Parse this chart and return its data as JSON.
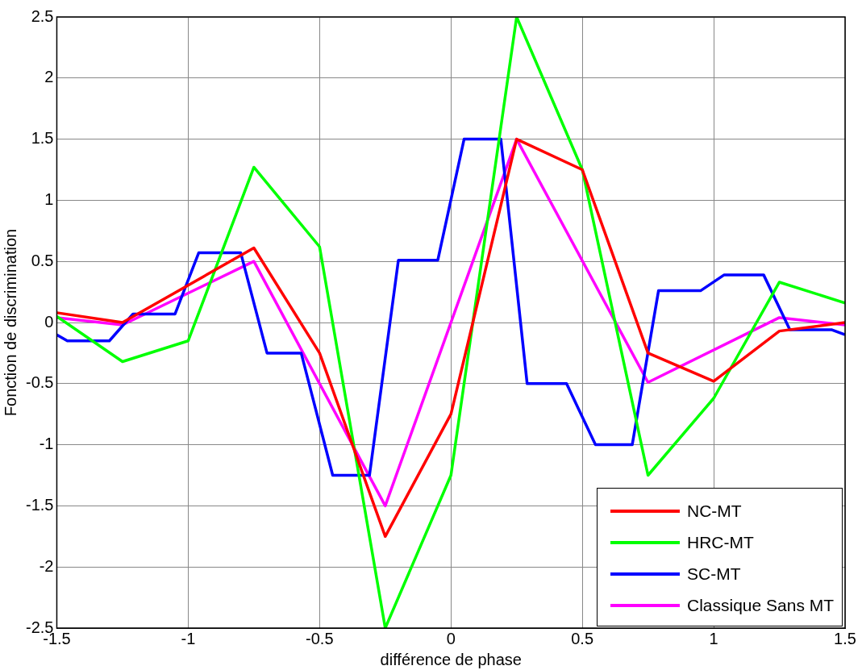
{
  "chart_data": {
    "type": "line",
    "xlabel": "différence de phase",
    "ylabel": "Fonction de discrimination",
    "xlim": [
      -1.5,
      1.5
    ],
    "xticks": [
      -1.5,
      -1,
      -0.5,
      0,
      0.5,
      1,
      1.5
    ],
    "ylim": [
      -2.5,
      2.5
    ],
    "yticks": [
      -2.5,
      -2,
      -1.5,
      -1,
      -0.5,
      0,
      0.5,
      1,
      1.5,
      2,
      2.5
    ],
    "grid": true,
    "legend": "bottom right",
    "marker": "none",
    "line_style": "solid",
    "series": [
      {
        "name": "NC-MT",
        "color": "#ff0000",
        "x": [
          -1.5,
          -1.25,
          -0.75,
          -0.5,
          -0.25,
          0,
          0.25,
          0.5,
          0.75,
          1,
          1.25,
          1.5
        ],
        "values": [
          0.08,
          0,
          0.61,
          -0.25,
          -1.75,
          -0.75,
          1.5,
          1.25,
          -0.25,
          -0.48,
          -0.07,
          0
        ]
      },
      {
        "name": "HRC-MT",
        "color": "#00ff00",
        "x": [
          -1.5,
          -1.25,
          -1,
          -0.75,
          -0.5,
          -0.25,
          0,
          0.25,
          0.5,
          0.75,
          1,
          1.25,
          1.5
        ],
        "values": [
          0.05,
          -0.32,
          -0.15,
          1.27,
          0.62,
          -2.5,
          -1.25,
          2.5,
          1.25,
          -1.25,
          -0.62,
          0.33,
          0.16
        ]
      },
      {
        "name": "SC-MT",
        "color": "#0000ff",
        "x": [
          -1.5,
          -1.46,
          -1.3,
          -1.21,
          -1.05,
          -0.96,
          -0.8,
          -0.7,
          -0.57,
          -0.45,
          -0.31,
          -0.2,
          -0.05,
          0.05,
          0.19,
          0.29,
          0.44,
          0.55,
          0.69,
          0.79,
          0.95,
          1.04,
          1.19,
          1.29,
          1.45,
          1.5
        ],
        "values": [
          -0.1,
          -0.15,
          -0.15,
          0.07,
          0.07,
          0.57,
          0.57,
          -0.25,
          -0.25,
          -1.25,
          -1.25,
          0.51,
          0.51,
          1.5,
          1.5,
          -0.5,
          -0.5,
          -1,
          -1,
          0.26,
          0.26,
          0.39,
          0.39,
          -0.06,
          -0.06,
          -0.1
        ]
      },
      {
        "name": "Classique Sans MT",
        "color": "#ff00ff",
        "x": [
          -1.5,
          -1.25,
          -0.75,
          -0.25,
          0.25,
          0.75,
          1.25,
          1.5
        ],
        "values": [
          0.04,
          -0.02,
          0.5,
          -1.5,
          1.5,
          -0.49,
          0.04,
          -0.02
        ]
      }
    ]
  }
}
